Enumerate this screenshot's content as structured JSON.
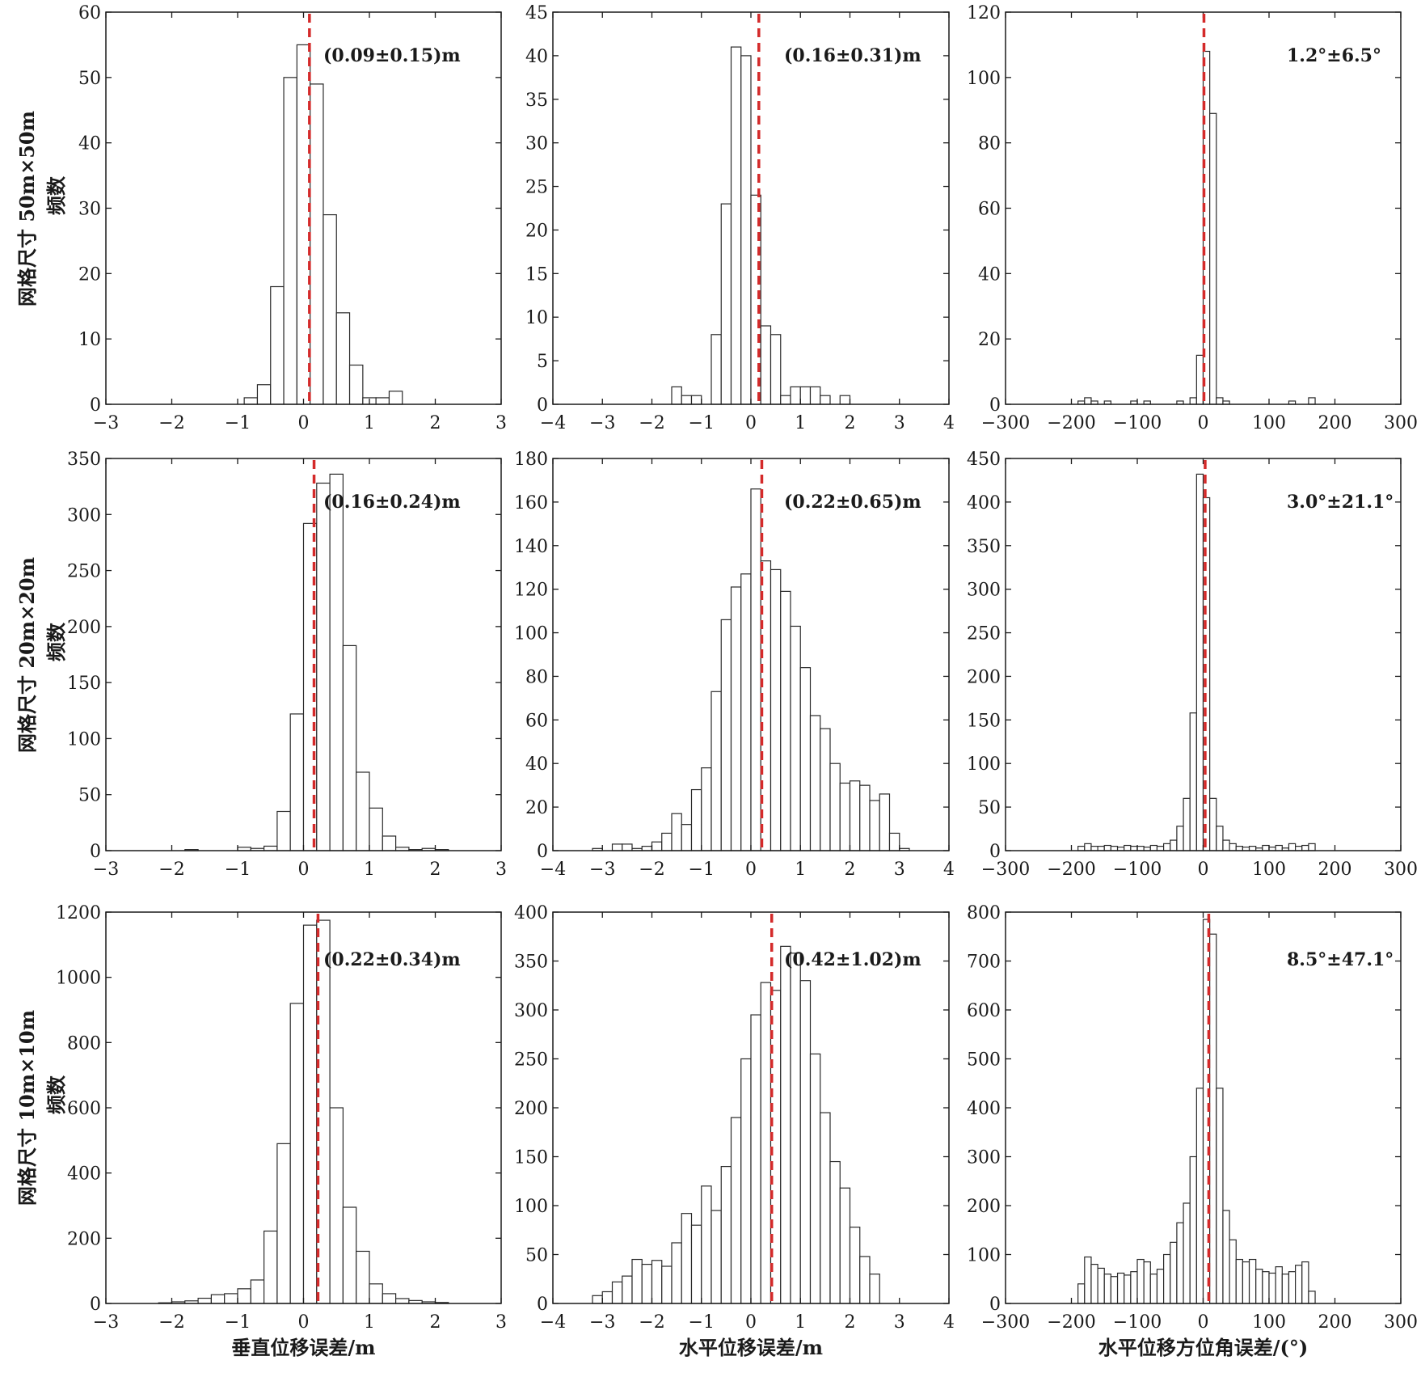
{
  "colors": {
    "bar_fill": "#ffffff",
    "bar_edge": "#2a2a2a",
    "mean_line": "#d42a2a",
    "axis": "#1a1a1a"
  },
  "row_labels": [
    [
      "网格尺寸 50m×50m",
      "频数"
    ],
    [
      "网格尺寸 20m×20m",
      "频数"
    ],
    [
      "网格尺寸 10m×10m",
      "频数"
    ]
  ],
  "col_xlabels": [
    "垂直位移误差/m",
    "水平位移误差/m",
    "水平位移方位角误差/(°)"
  ],
  "chart_data": [
    {
      "type": "bar",
      "row": 0,
      "col": 0,
      "xlim": [
        -3,
        3
      ],
      "ylim": [
        0,
        60
      ],
      "grid": false,
      "xticks": [
        -3,
        -2,
        -1,
        0,
        1,
        2,
        3
      ],
      "yticks": [
        0,
        10,
        20,
        30,
        40,
        50,
        60
      ],
      "bin_start": -0.9,
      "bin_width": 0.2,
      "counts": [
        1,
        3,
        18,
        50,
        55,
        49,
        29,
        14,
        6,
        1,
        1,
        2
      ],
      "mean": 0.09,
      "annotation": "(0.09±0.15)m"
    },
    {
      "type": "bar",
      "row": 0,
      "col": 1,
      "xlim": [
        -4,
        4
      ],
      "ylim": [
        0,
        45
      ],
      "grid": false,
      "xticks": [
        -4,
        -3,
        -2,
        -1,
        0,
        1,
        2,
        3,
        4
      ],
      "yticks": [
        0,
        5,
        10,
        15,
        20,
        25,
        30,
        35,
        40,
        45
      ],
      "bin_start": -1.6,
      "bin_width": 0.2,
      "counts": [
        2,
        1,
        1,
        0,
        8,
        23,
        41,
        40,
        24,
        9,
        8,
        1,
        2,
        2,
        2,
        1,
        0,
        1
      ],
      "mean": 0.16,
      "annotation": "(0.16±0.31)m"
    },
    {
      "type": "bar",
      "row": 0,
      "col": 2,
      "xlim": [
        -300,
        300
      ],
      "ylim": [
        0,
        120
      ],
      "grid": false,
      "xticks": [
        -300,
        -200,
        -100,
        0,
        100,
        200,
        300
      ],
      "yticks": [
        0,
        20,
        40,
        60,
        80,
        100,
        120
      ],
      "bin_start": -190,
      "bin_width": 10,
      "counts": [
        1,
        2,
        1,
        0,
        1,
        0,
        0,
        0,
        1,
        0,
        1,
        0,
        0,
        0,
        0,
        1,
        0,
        2,
        15,
        108,
        89,
        2,
        1,
        0,
        0,
        0,
        0,
        0,
        0,
        0,
        0,
        0,
        1,
        0,
        0,
        2
      ],
      "mean": 1.2,
      "annotation": "1.2°±6.5°"
    },
    {
      "type": "bar",
      "row": 1,
      "col": 0,
      "xlim": [
        -3,
        3
      ],
      "ylim": [
        0,
        350
      ],
      "grid": false,
      "xticks": [
        -3,
        -2,
        -1,
        0,
        1,
        2,
        3
      ],
      "yticks": [
        0,
        50,
        100,
        150,
        200,
        250,
        300,
        350
      ],
      "bin_start": -2.0,
      "bin_width": 0.2,
      "counts": [
        0,
        1,
        0,
        0,
        0,
        3,
        2,
        4,
        35,
        122,
        292,
        328,
        336,
        183,
        70,
        38,
        13,
        3,
        1,
        2,
        1
      ],
      "mean": 0.16,
      "annotation": "(0.16±0.24)m"
    },
    {
      "type": "bar",
      "row": 1,
      "col": 1,
      "xlim": [
        -4,
        4
      ],
      "ylim": [
        0,
        180
      ],
      "grid": false,
      "xticks": [
        -4,
        -3,
        -2,
        -1,
        0,
        1,
        2,
        3,
        4
      ],
      "yticks": [
        0,
        20,
        40,
        60,
        80,
        100,
        120,
        140,
        160,
        180
      ],
      "bin_start": -3.2,
      "bin_width": 0.2,
      "counts": [
        1,
        0,
        3,
        3,
        1,
        2,
        4,
        8,
        17,
        12,
        28,
        38,
        73,
        106,
        121,
        127,
        166,
        133,
        129,
        119,
        103,
        84,
        62,
        56,
        40,
        31,
        32,
        30,
        23,
        26,
        8,
        1
      ],
      "mean": 0.22,
      "annotation": "(0.22±0.65)m"
    },
    {
      "type": "bar",
      "row": 1,
      "col": 2,
      "xlim": [
        -300,
        300
      ],
      "ylim": [
        0,
        450
      ],
      "grid": false,
      "xticks": [
        -300,
        -200,
        -100,
        0,
        100,
        200,
        300
      ],
      "yticks": [
        0,
        50,
        100,
        150,
        200,
        250,
        300,
        350,
        400,
        450
      ],
      "bin_start": -190,
      "bin_width": 10,
      "counts": [
        5,
        8,
        5,
        5,
        6,
        5,
        4,
        6,
        5,
        5,
        4,
        6,
        5,
        8,
        12,
        28,
        60,
        158,
        432,
        405,
        60,
        28,
        12,
        8,
        5,
        4,
        5,
        3,
        6,
        4,
        6,
        3,
        8,
        5,
        6,
        8
      ],
      "mean": 3.0,
      "annotation": "3.0°±21.1°"
    },
    {
      "type": "bar",
      "row": 2,
      "col": 0,
      "xlim": [
        -3,
        3
      ],
      "ylim": [
        0,
        1200
      ],
      "grid": false,
      "xticks": [
        -3,
        -2,
        -1,
        0,
        1,
        2,
        3
      ],
      "yticks": [
        0,
        200,
        400,
        600,
        800,
        1000,
        1200
      ],
      "bin_start": -2.2,
      "bin_width": 0.2,
      "counts": [
        2,
        5,
        8,
        16,
        27,
        30,
        45,
        72,
        222,
        490,
        920,
        1160,
        1175,
        600,
        295,
        160,
        60,
        30,
        15,
        9,
        5,
        3
      ],
      "mean": 0.22,
      "annotation": "(0.22±0.34)m"
    },
    {
      "type": "bar",
      "row": 2,
      "col": 1,
      "xlim": [
        -4,
        4
      ],
      "ylim": [
        0,
        400
      ],
      "grid": false,
      "xticks": [
        -4,
        -3,
        -2,
        -1,
        0,
        1,
        2,
        3,
        4
      ],
      "yticks": [
        0,
        50,
        100,
        150,
        200,
        250,
        300,
        350,
        400
      ],
      "bin_start": -3.2,
      "bin_width": 0.2,
      "counts": [
        8,
        12,
        22,
        28,
        45,
        40,
        44,
        38,
        62,
        92,
        80,
        120,
        95,
        140,
        190,
        250,
        295,
        328,
        320,
        365,
        358,
        330,
        255,
        195,
        145,
        118,
        78,
        48,
        30,
        0
      ],
      "mean": 0.42,
      "annotation": "(0.42±1.02)m"
    },
    {
      "type": "bar",
      "row": 2,
      "col": 2,
      "xlim": [
        -300,
        300
      ],
      "ylim": [
        0,
        800
      ],
      "grid": false,
      "xticks": [
        -300,
        -200,
        -100,
        0,
        100,
        200,
        300
      ],
      "yticks": [
        0,
        100,
        200,
        300,
        400,
        500,
        600,
        700,
        800
      ],
      "bin_start": -190,
      "bin_width": 10,
      "counts": [
        40,
        95,
        80,
        72,
        60,
        55,
        62,
        58,
        65,
        90,
        85,
        60,
        70,
        100,
        125,
        165,
        205,
        300,
        440,
        785,
        755,
        440,
        190,
        130,
        90,
        85,
        90,
        70,
        65,
        62,
        75,
        60,
        65,
        78,
        85,
        25
      ],
      "mean": 8.5,
      "annotation": "8.5°±47.1°"
    }
  ]
}
